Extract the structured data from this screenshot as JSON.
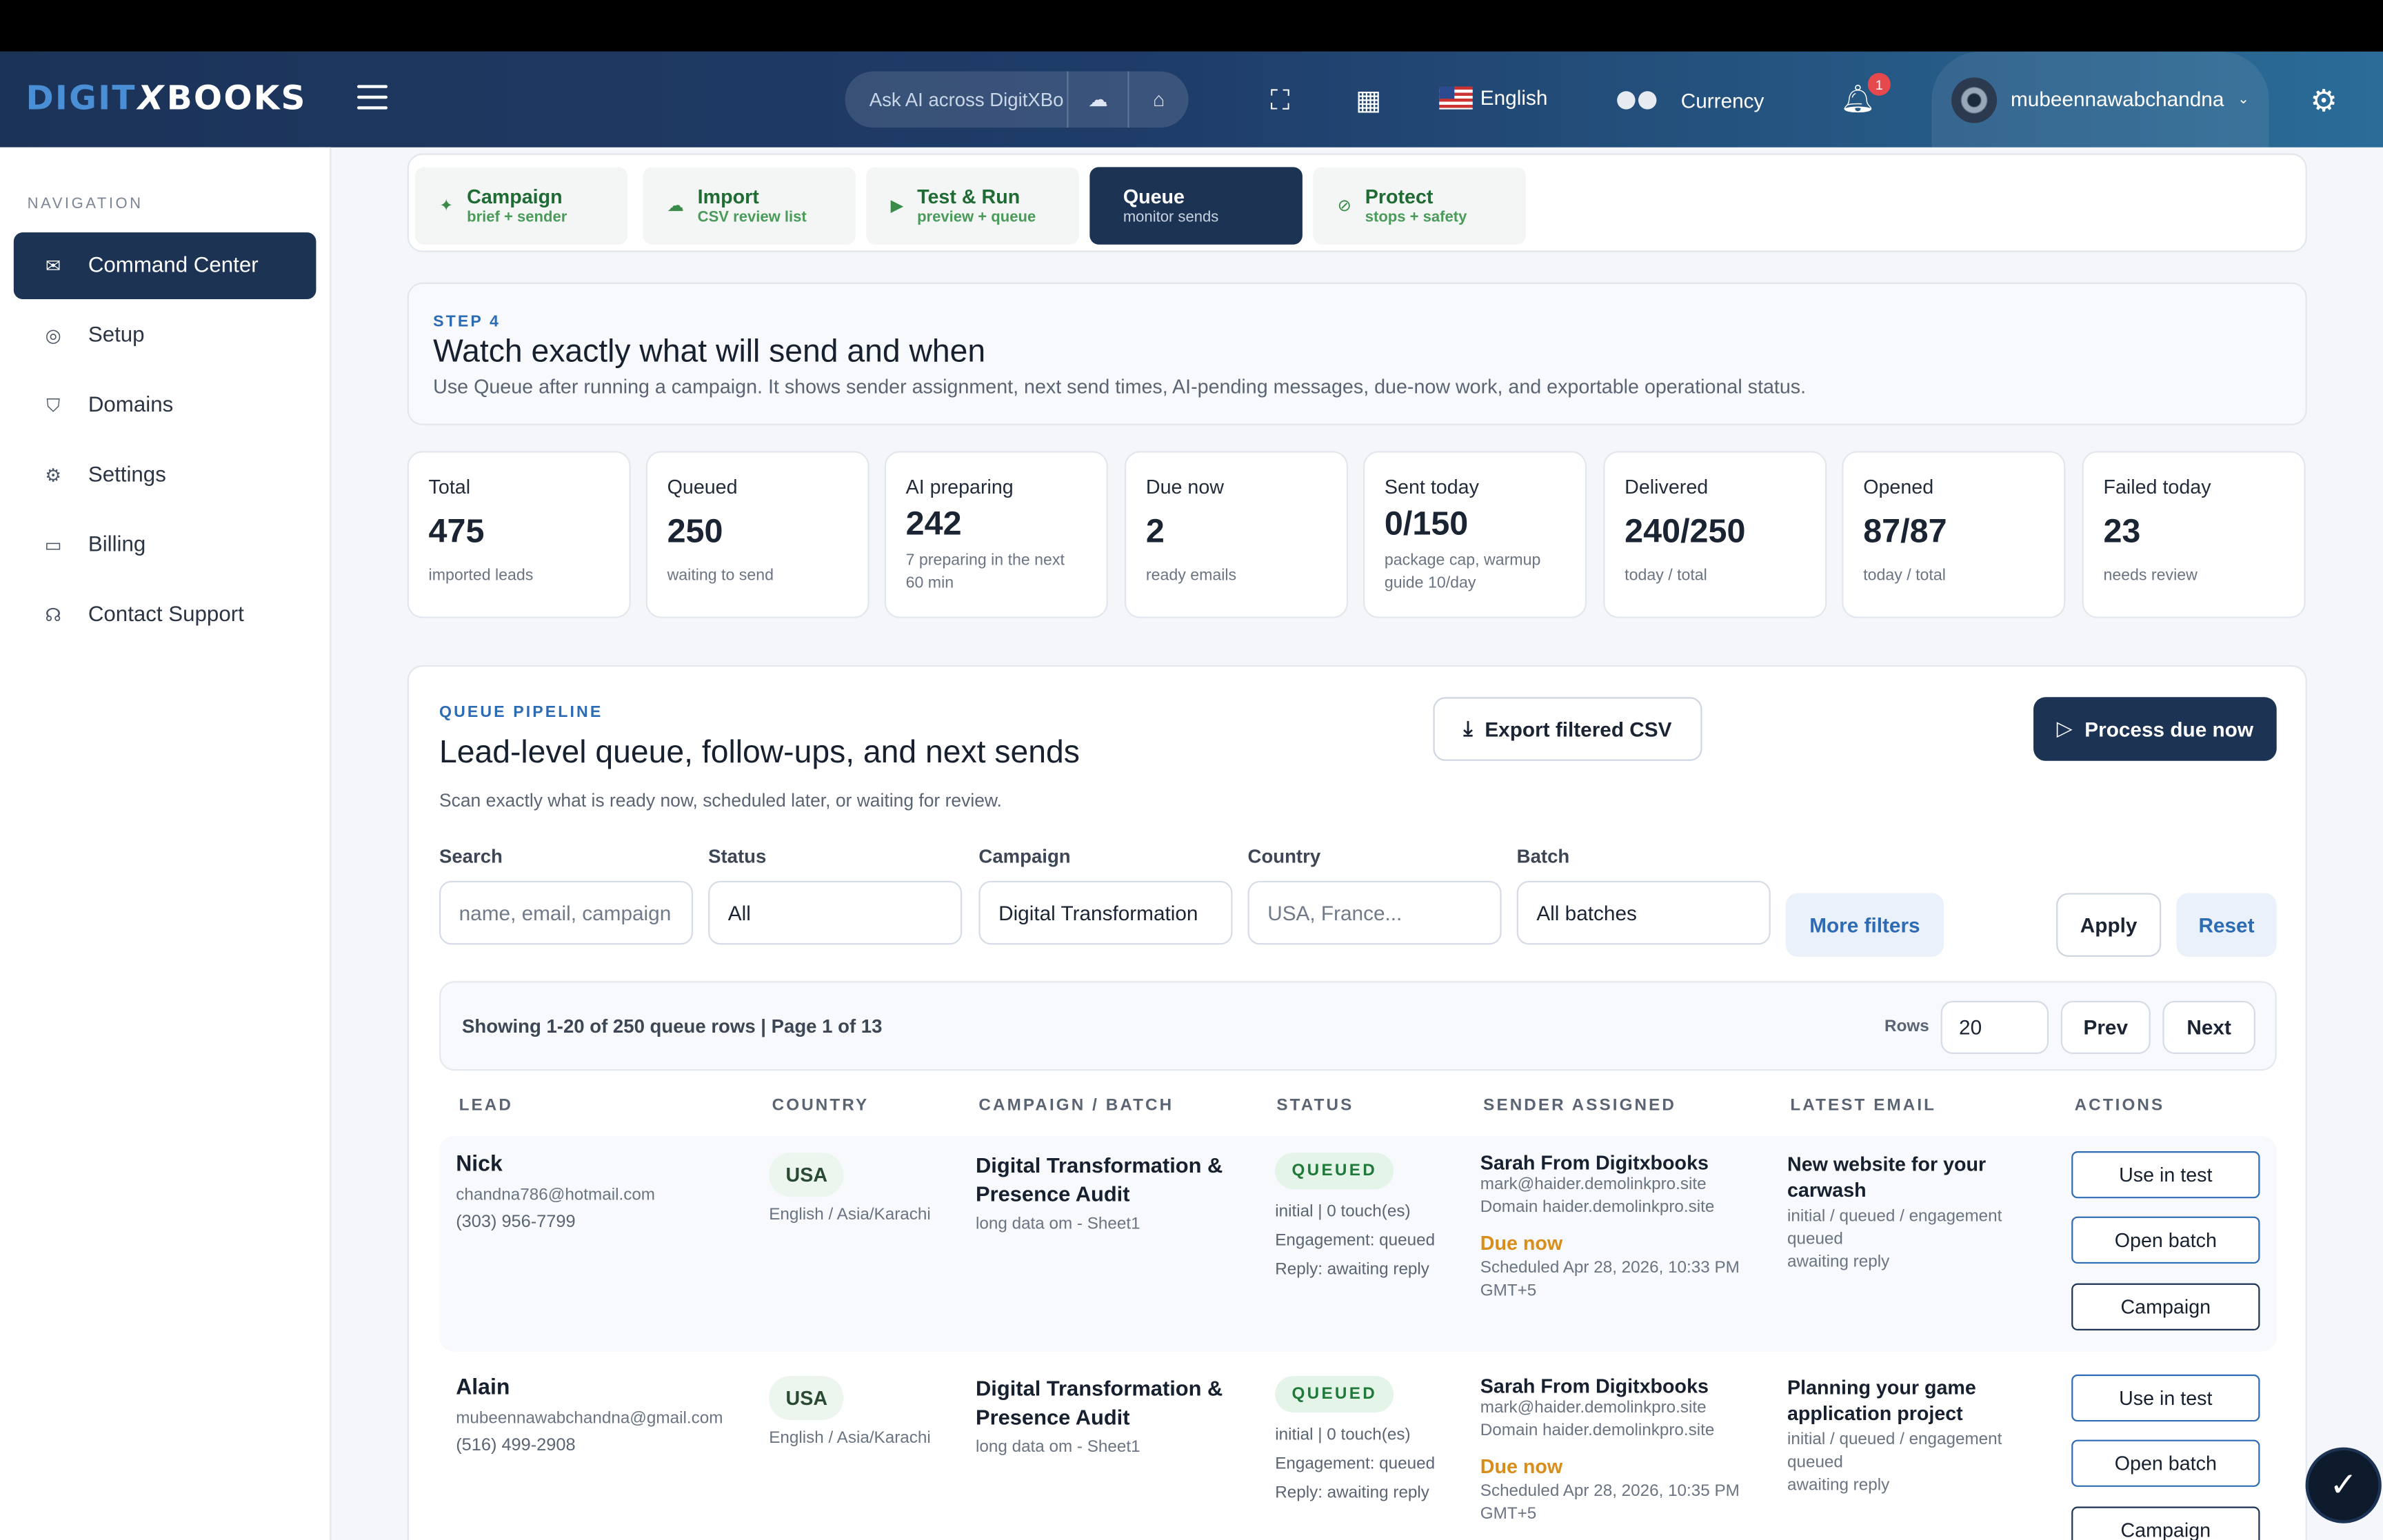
{
  "brand": {
    "logo_part1": "DIGIT",
    "logo_x": "X",
    "logo_part2": "BOOKS"
  },
  "topbar": {
    "ai_placeholder": "Ask AI across DigitXBo",
    "language": "English",
    "currency": "Currency",
    "notif_count": "1",
    "username": "mubeennawabchandna"
  },
  "sidebar": {
    "label": "NAVIGATION",
    "items": [
      {
        "label": "Command Center",
        "icon": "send-icon"
      },
      {
        "label": "Setup",
        "icon": "compass-icon"
      },
      {
        "label": "Domains",
        "icon": "shield-icon"
      },
      {
        "label": "Settings",
        "icon": "gear-icon"
      },
      {
        "label": "Billing",
        "icon": "card-icon"
      },
      {
        "label": "Contact Support",
        "icon": "headset-icon"
      }
    ]
  },
  "steps": [
    {
      "title": "Campaign",
      "sub": "brief + sender"
    },
    {
      "title": "Import",
      "sub": "CSV review list"
    },
    {
      "title": "Test & Run",
      "sub": "preview + queue"
    },
    {
      "title": "Queue",
      "sub": "monitor sends"
    },
    {
      "title": "Protect",
      "sub": "stops + safety"
    }
  ],
  "intro": {
    "eyebrow": "STEP 4",
    "title": "Watch exactly what will send and when",
    "desc": "Use Queue after running a campaign. It shows sender assignment, next send times, AI-pending messages, due-now work, and exportable operational status."
  },
  "stats": [
    {
      "label": "Total",
      "value": "475",
      "desc": "imported leads"
    },
    {
      "label": "Queued",
      "value": "250",
      "desc": "waiting to send"
    },
    {
      "label": "AI preparing",
      "value": "242",
      "desc": "7 preparing in the next 60 min"
    },
    {
      "label": "Due now",
      "value": "2",
      "desc": "ready emails"
    },
    {
      "label": "Sent today",
      "value": "0/150",
      "desc": "package cap, warmup guide 10/day"
    },
    {
      "label": "Delivered",
      "value": "240/250",
      "desc": "today / total"
    },
    {
      "label": "Opened",
      "value": "87/87",
      "desc": "today / total"
    },
    {
      "label": "Failed today",
      "value": "23",
      "desc": "needs review"
    }
  ],
  "pipeline": {
    "eyebrow": "QUEUE PIPELINE",
    "title": "Lead-level queue, follow-ups, and next sends",
    "desc": "Scan exactly what is ready now, scheduled later, or waiting for review.",
    "export_label": "Export filtered CSV",
    "process_label": "Process due now"
  },
  "filters": {
    "search_label": "Search",
    "search_placeholder": "name, email, campaign",
    "status_label": "Status",
    "status_value": "All",
    "campaign_label": "Campaign",
    "campaign_value": "Digital Transformation",
    "country_label": "Country",
    "country_placeholder": "USA, France...",
    "batch_label": "Batch",
    "batch_value": "All batches",
    "more_label": "More filters",
    "apply_label": "Apply",
    "reset_label": "Reset"
  },
  "pager": {
    "summary": "Showing 1-20 of 250 queue rows | Page 1 of 13",
    "rows_label": "Rows",
    "rows_value": "20",
    "prev_label": "Prev",
    "next_label": "Next"
  },
  "table": {
    "headers": [
      "LEAD",
      "COUNTRY",
      "CAMPAIGN / BATCH",
      "STATUS",
      "SENDER ASSIGNED",
      "LATEST EMAIL",
      "ACTIONS"
    ],
    "rows": [
      {
        "name": "Nick",
        "email": "chandna786@hotmail.com",
        "phone": "(303) 956-7799",
        "country": "USA",
        "locale": "English / Asia/Karachi",
        "campaign": "Digital Transformation & Presence Audit",
        "batch": "long data om - Sheet1",
        "status": "QUEUED",
        "touch": "initial | 0 touch(es)",
        "engagement": "Engagement: queued",
        "reply": "Reply: awaiting reply",
        "sender": "Sarah From Digitxbooks",
        "sender_email": "mark@haider.demolinkpro.site",
        "sender_domain": "Domain haider.demolinkpro.site",
        "due": "Due now",
        "scheduled": "Scheduled Apr 28, 2026, 10:33 PM GMT+5",
        "email_subject": "New website for your carwash",
        "email_meta": "initial / queued / engagement queued",
        "email_reply": "awaiting reply",
        "actions": [
          "Use in test",
          "Open batch",
          "Campaign"
        ]
      },
      {
        "name": "Alain",
        "email": "mubeennawabchandna@gmail.com",
        "phone": "(516) 499-2908",
        "country": "USA",
        "locale": "English / Asia/Karachi",
        "campaign": "Digital Transformation & Presence Audit",
        "batch": "long data om - Sheet1",
        "status": "QUEUED",
        "touch": "initial | 0 touch(es)",
        "engagement": "Engagement: queued",
        "reply": "Reply: awaiting reply",
        "sender": "Sarah From Digitxbooks",
        "sender_email": "mark@haider.demolinkpro.site",
        "sender_domain": "Domain haider.demolinkpro.site",
        "due": "Due now",
        "scheduled": "Scheduled Apr 28, 2026, 10:35 PM GMT+5",
        "email_subject": "Planning your game application project",
        "email_meta": "initial / queued / engagement queued",
        "email_reply": "awaiting reply",
        "actions": [
          "Use in test",
          "Open batch",
          "Campaign"
        ]
      }
    ]
  },
  "colors": {
    "navy": "#1d3354",
    "accent_blue": "#2e6bb5",
    "queued_green": "#1f7a3a",
    "due_orange": "#d98d1a"
  }
}
